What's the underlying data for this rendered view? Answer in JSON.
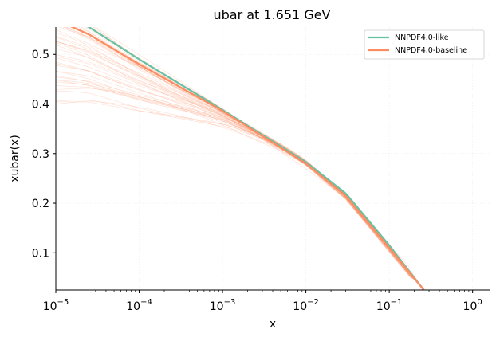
{
  "chart_data": {
    "type": "line",
    "title": "ubar at 1.651 GeV",
    "xlabel": "x",
    "ylabel": "xubar(x)",
    "xscale": "log",
    "xlim": [
      1e-05,
      1.6
    ],
    "ylim": [
      0.025,
      0.555
    ],
    "yticks": [
      0.1,
      0.2,
      0.3,
      0.4,
      0.5
    ],
    "ytick_labels": [
      "0.1",
      "0.2",
      "0.3",
      "0.4",
      "0.5"
    ],
    "xticks": [
      1e-05,
      0.0001,
      0.001,
      0.01,
      0.1,
      1
    ],
    "xtick_labels": [
      {
        "base": "10",
        "exp": "−5"
      },
      {
        "base": "10",
        "exp": "−4"
      },
      {
        "base": "10",
        "exp": "−3"
      },
      {
        "base": "10",
        "exp": "−2"
      },
      {
        "base": "10",
        "exp": "−1"
      },
      {
        "base": "10",
        "exp": "0"
      }
    ],
    "grid": "faint",
    "legend_position": "top-right",
    "series": [
      {
        "name": "NNPDF4.0-like",
        "color": "#66c2a5",
        "x": [
          1e-05,
          2.5e-05,
          0.0001,
          0.001,
          0.01,
          0.03,
          0.1,
          0.26
        ],
        "y": [
          0.585,
          0.555,
          0.49,
          0.388,
          0.283,
          0.22,
          0.115,
          0.025
        ]
      },
      {
        "name": "NNPDF4.0-baseline",
        "color": "#fc8d62",
        "x": [
          1e-05,
          2.5e-05,
          0.0001,
          0.001,
          0.01,
          0.03,
          0.1,
          0.26
        ],
        "y": [
          0.57,
          0.54,
          0.48,
          0.386,
          0.28,
          0.215,
          0.11,
          0.025
        ]
      }
    ],
    "replica_band": {
      "color": "#fc8d62",
      "count": 45,
      "low_x_spread": [
        0.4,
        0.6
      ]
    }
  }
}
